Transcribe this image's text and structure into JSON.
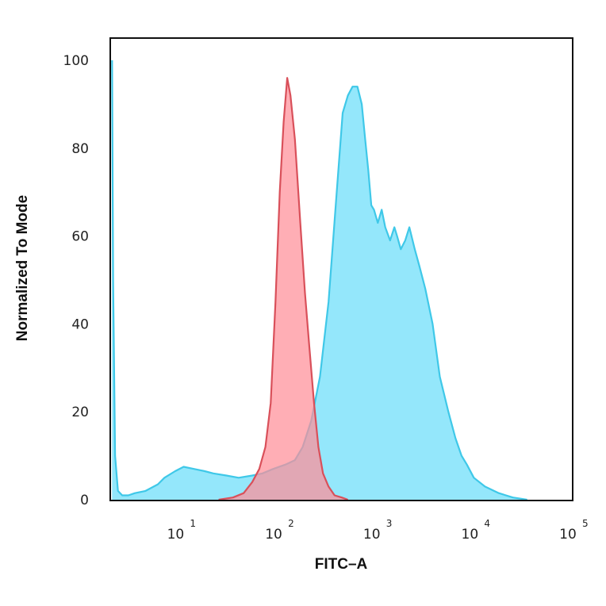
{
  "chart_data": {
    "type": "area",
    "title": "",
    "xlabel": "FITC–A",
    "ylabel": "Normalized To Mode",
    "x_scale": "log10",
    "xlim": [
      2,
      100000
    ],
    "ylim": [
      0,
      100
    ],
    "y_ticks": [
      0,
      20,
      40,
      60,
      80,
      100
    ],
    "x_ticks": [
      {
        "value": 10,
        "base": "10",
        "exp": "1"
      },
      {
        "value": 100,
        "base": "10",
        "exp": "2"
      },
      {
        "value": 1000,
        "base": "10",
        "exp": "3"
      },
      {
        "value": 10000,
        "base": "10",
        "exp": "4"
      },
      {
        "value": 100000,
        "base": "10",
        "exp": "5"
      }
    ],
    "grid": false,
    "legend": "none",
    "series": [
      {
        "color": "#3fc8e8",
        "fill": "#8ee6fb",
        "points": [
          [
            2.05,
            100
          ],
          [
            2.1,
            50
          ],
          [
            2.2,
            10
          ],
          [
            2.35,
            2
          ],
          [
            2.6,
            1
          ],
          [
            3,
            1
          ],
          [
            3.5,
            1.5
          ],
          [
            4.5,
            2
          ],
          [
            6,
            3.5
          ],
          [
            7,
            5
          ],
          [
            9,
            6.5
          ],
          [
            11,
            7.5
          ],
          [
            14,
            7
          ],
          [
            18,
            6.5
          ],
          [
            22,
            6
          ],
          [
            30,
            5.5
          ],
          [
            40,
            5
          ],
          [
            55,
            5.5
          ],
          [
            70,
            6
          ],
          [
            90,
            7
          ],
          [
            120,
            8
          ],
          [
            150,
            9
          ],
          [
            180,
            12
          ],
          [
            220,
            18
          ],
          [
            270,
            28
          ],
          [
            330,
            45
          ],
          [
            400,
            70
          ],
          [
            460,
            88
          ],
          [
            520,
            92
          ],
          [
            580,
            94
          ],
          [
            650,
            94
          ],
          [
            720,
            90
          ],
          [
            780,
            82
          ],
          [
            840,
            75
          ],
          [
            900,
            67
          ],
          [
            960,
            66
          ],
          [
            1050,
            63
          ],
          [
            1150,
            66
          ],
          [
            1250,
            62
          ],
          [
            1400,
            59
          ],
          [
            1550,
            62
          ],
          [
            1650,
            60
          ],
          [
            1800,
            57
          ],
          [
            2000,
            59
          ],
          [
            2200,
            62
          ],
          [
            2500,
            57
          ],
          [
            2800,
            53
          ],
          [
            3200,
            48
          ],
          [
            3800,
            40
          ],
          [
            4500,
            28
          ],
          [
            5500,
            20
          ],
          [
            6500,
            14
          ],
          [
            7500,
            10
          ],
          [
            8500,
            8
          ],
          [
            10000,
            5
          ],
          [
            13000,
            3
          ],
          [
            18000,
            1.5
          ],
          [
            25000,
            0.5
          ],
          [
            35000,
            0
          ]
        ]
      },
      {
        "color": "#d9505a",
        "fill": "#ff8f98",
        "points": [
          [
            25,
            0
          ],
          [
            35,
            0.5
          ],
          [
            45,
            1.5
          ],
          [
            55,
            4
          ],
          [
            65,
            7
          ],
          [
            75,
            12
          ],
          [
            85,
            22
          ],
          [
            95,
            45
          ],
          [
            105,
            70
          ],
          [
            115,
            86
          ],
          [
            125,
            96
          ],
          [
            135,
            92
          ],
          [
            150,
            82
          ],
          [
            170,
            63
          ],
          [
            190,
            47
          ],
          [
            210,
            35
          ],
          [
            235,
            22
          ],
          [
            260,
            12
          ],
          [
            290,
            6
          ],
          [
            330,
            3
          ],
          [
            380,
            1
          ],
          [
            450,
            0.5
          ],
          [
            520,
            0
          ]
        ]
      }
    ]
  }
}
